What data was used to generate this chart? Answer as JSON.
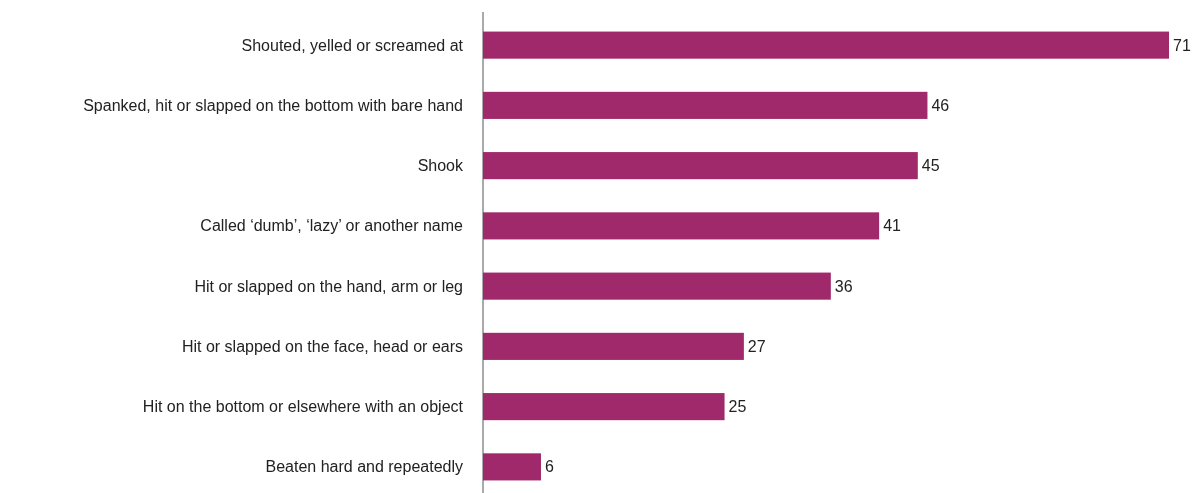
{
  "chart_data": {
    "type": "bar",
    "orientation": "horizontal",
    "categories": [
      "Shouted, yelled or screamed at",
      "Spanked, hit or slapped on the bottom with bare hand",
      "Shook",
      "Called ‘dumb’, ‘lazy’ or another name",
      "Hit or slapped on the hand, arm or leg",
      "Hit or slapped on the face, head or ears",
      "Hit on the bottom or elsewhere with an object",
      "Beaten hard and repeatedly"
    ],
    "values": [
      71,
      46,
      45,
      41,
      36,
      27,
      25,
      6
    ],
    "color": "#a0296b",
    "data_labels": true
  }
}
